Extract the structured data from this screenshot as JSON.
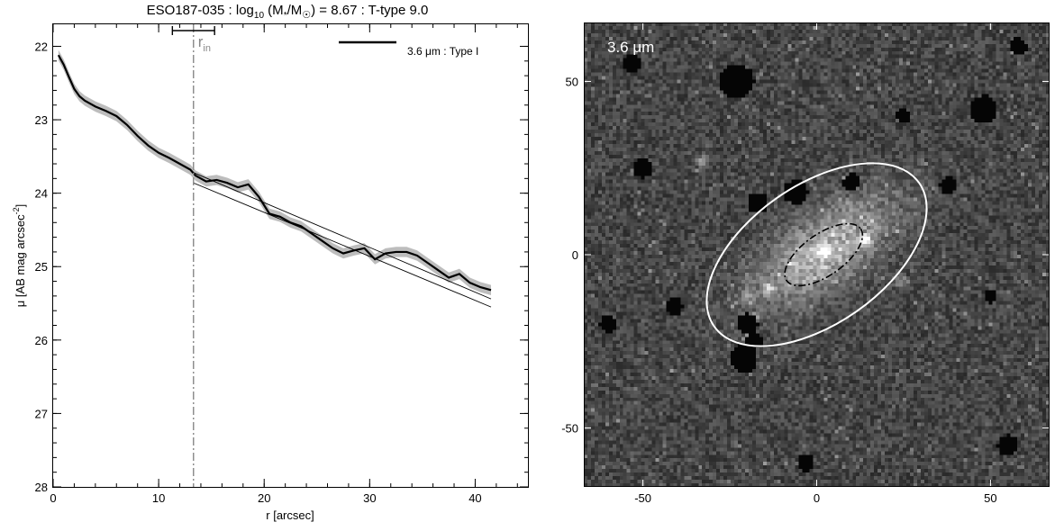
{
  "chart_data": [
    {
      "type": "line",
      "title_parts": {
        "name": "ESO187-035 : log",
        "sub": "10",
        "mid": " (M",
        "star": "*",
        "slash": "/M",
        "sun": "☉",
        "rest": ") = 8.67 : T-type 9.0"
      },
      "xlabel": "r [arcsec]",
      "ylabel_main": "μ [AB mag arcsec",
      "ylabel_sup": "-2",
      "ylabel_end": "]",
      "xlim": [
        0,
        45
      ],
      "ylim": [
        28,
        21.7
      ],
      "y_inverted": true,
      "xticks": [
        0,
        10,
        20,
        30,
        40
      ],
      "yticks": [
        22,
        23,
        24,
        25,
        26,
        27,
        28
      ],
      "x_minor_step": 2,
      "y_minor_step": 0.2,
      "legend": {
        "label": "3.6 μm : Type I",
        "position": "top-right"
      },
      "r_in": {
        "label_main": "r",
        "label_sub": "in",
        "value": 13.3,
        "err_low": 11.3,
        "err_high": 15.3,
        "color": "#888888"
      },
      "profile": {
        "x": [
          0.5,
          1.0,
          1.5,
          2.0,
          2.5,
          3.0,
          4.0,
          5.0,
          6.0,
          7.0,
          8.0,
          9.0,
          10.0,
          11.0,
          12.0,
          13.0,
          13.5,
          14.5,
          15.5,
          16.5,
          17.5,
          18.5,
          19.5,
          20.5,
          21.5,
          22.5,
          23.5,
          24.5,
          25.5,
          26.5,
          27.5,
          28.5,
          29.5,
          30.5,
          31.5,
          32.5,
          33.5,
          34.5,
          35.5,
          36.5,
          37.5,
          38.5,
          39.5,
          40.5,
          41.5
        ],
        "y": [
          22.12,
          22.25,
          22.42,
          22.58,
          22.68,
          22.74,
          22.82,
          22.88,
          22.95,
          23.07,
          23.22,
          23.35,
          23.45,
          23.52,
          23.6,
          23.68,
          23.76,
          23.84,
          23.82,
          23.86,
          23.92,
          23.88,
          24.05,
          24.28,
          24.32,
          24.4,
          24.45,
          24.55,
          24.65,
          24.75,
          24.82,
          24.78,
          24.75,
          24.9,
          24.82,
          24.8,
          24.8,
          24.85,
          24.95,
          25.05,
          25.15,
          25.1,
          25.22,
          25.28,
          25.32
        ],
        "color": "#000000",
        "err": 0.07,
        "err_color": "#bdbdbd"
      },
      "fit_lines": [
        {
          "x": [
            13.3,
            41.5
          ],
          "y": [
            23.72,
            25.44
          ]
        },
        {
          "x": [
            13.3,
            41.5
          ],
          "y": [
            23.86,
            25.55
          ]
        }
      ]
    },
    {
      "type": "heatmap",
      "band_label": "3.6 μm",
      "xlim": [
        -67,
        67
      ],
      "ylim": [
        -67,
        67
      ],
      "xticks": [
        -50,
        0,
        50
      ],
      "yticks": [
        -50,
        0,
        50
      ],
      "outer_ellipse": {
        "cx": 0,
        "cy": 0,
        "rx": 36,
        "ry": 20,
        "angle_deg": 35,
        "color": "#ffffff",
        "style": "solid"
      },
      "inner_ellipse": {
        "cx": 2,
        "cy": 0,
        "rx": 13,
        "ry": 6,
        "angle_deg": 35,
        "color": "#000000",
        "style": "dashdot"
      },
      "masks": [
        {
          "x": -23,
          "y": 50,
          "r": 5
        },
        {
          "x": -17,
          "y": 15,
          "r": 3
        },
        {
          "x": -6,
          "y": 18,
          "r": 3.5
        },
        {
          "x": 10,
          "y": 21,
          "r": 2.5
        },
        {
          "x": -20,
          "y": -20,
          "r": 3
        },
        {
          "x": -18,
          "y": -25,
          "r": 2.5
        },
        {
          "x": -21,
          "y": -30,
          "r": 4
        },
        {
          "x": -50,
          "y": 25,
          "r": 3
        },
        {
          "x": -53,
          "y": 55,
          "r": 2.5
        },
        {
          "x": -41,
          "y": -15,
          "r": 2.5
        },
        {
          "x": 38,
          "y": 20,
          "r": 2.5
        },
        {
          "x": 48,
          "y": 42,
          "r": 4
        },
        {
          "x": 50,
          "y": -12,
          "r": 2
        },
        {
          "x": -60,
          "y": -20,
          "r": 2.5
        },
        {
          "x": 25,
          "y": 40,
          "r": 2
        },
        {
          "x": 58,
          "y": 60,
          "r": 2.5
        },
        {
          "x": 55,
          "y": -55,
          "r": 3
        },
        {
          "x": -3,
          "y": -60,
          "r": 2.5
        }
      ],
      "bright_sources": [
        {
          "x": 2,
          "y": 1,
          "amp": 0.5
        },
        {
          "x": 14,
          "y": 4,
          "amp": 0.55
        },
        {
          "x": -14,
          "y": -10,
          "amp": 0.35
        },
        {
          "x": -20,
          "y": -12,
          "amp": 0.3
        },
        {
          "x": 24,
          "y": -8,
          "amp": 0.3
        },
        {
          "x": -33,
          "y": 27,
          "amp": 0.3
        }
      ],
      "galaxy": {
        "cx": 2,
        "cy": 1,
        "sig_major": 16,
        "sig_minor": 7,
        "angle_deg": 35,
        "amp": 0.48
      }
    }
  ]
}
